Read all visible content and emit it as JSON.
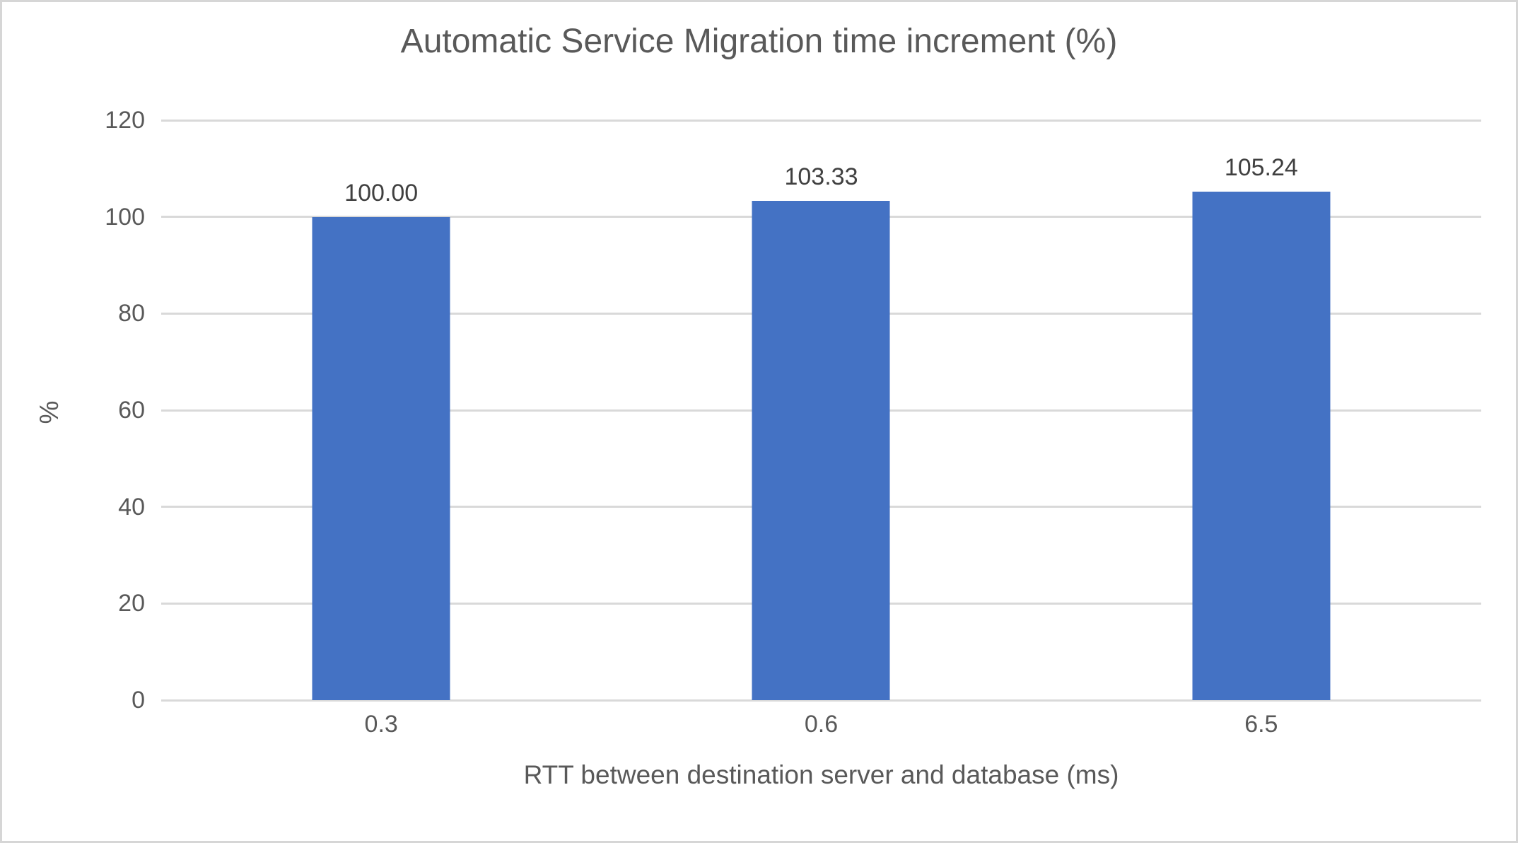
{
  "chart_data": {
    "type": "bar",
    "title": "Automatic Service Migration time increment (%)",
    "xlabel": "RTT between destination server and database (ms)",
    "ylabel": "%",
    "categories": [
      "0.3",
      "0.6",
      "6.5"
    ],
    "values": [
      100.0,
      103.33,
      105.24
    ],
    "bar_labels": [
      "100.00",
      "103.33",
      "105.24"
    ],
    "ylim": [
      0,
      120
    ],
    "yticks": [
      0,
      20,
      40,
      60,
      80,
      100,
      120
    ],
    "grid": "horizontal-only",
    "legend": "none",
    "colors": {
      "bar": "#4472C4",
      "gridline": "#D9D9D9",
      "axis_text": "#595959",
      "title_text": "#595959",
      "data_label_text": "#404040",
      "background": "#FFFFFF",
      "frame_border": "#D6D6D6"
    }
  }
}
